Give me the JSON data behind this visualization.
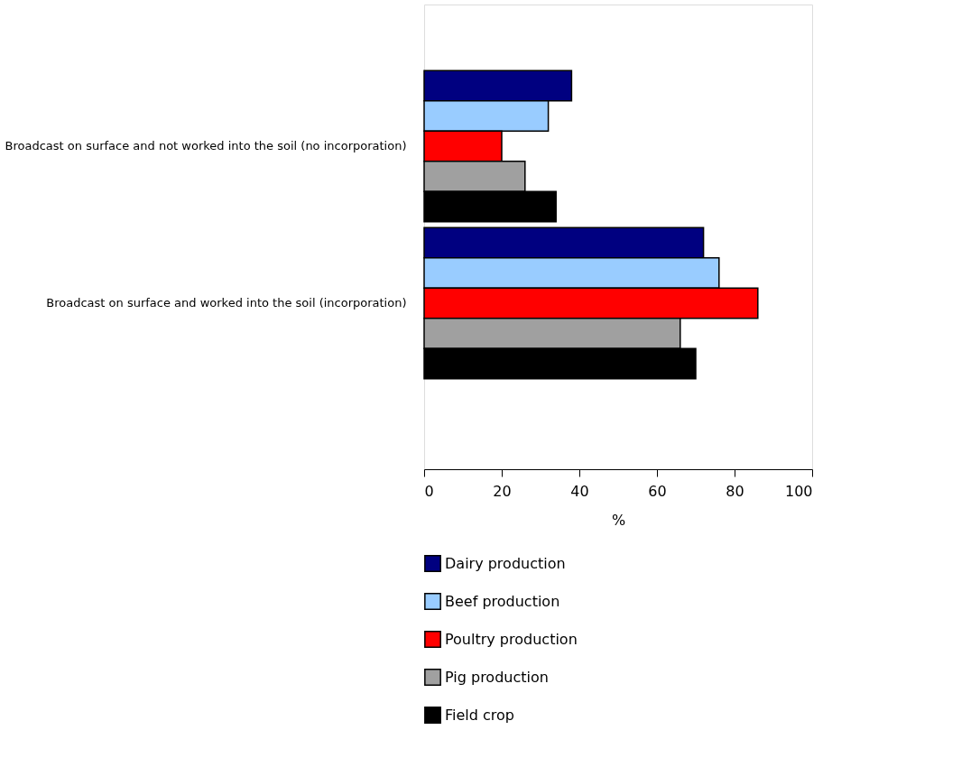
{
  "chart_data": {
    "type": "bar",
    "orientation": "horizontal",
    "xlabel": "%",
    "categories": [
      "Broadcast on surface and not worked into the soil (no incorporation)",
      "Broadcast on surface and worked into the soil (incorporation)"
    ],
    "series": [
      {
        "name": "Dairy production",
        "color": "#000080",
        "values": [
          38,
          72
        ]
      },
      {
        "name": "Beef production",
        "color": "#99ccff",
        "values": [
          32,
          76
        ]
      },
      {
        "name": "Poultry production",
        "color": "#ff0000",
        "values": [
          20,
          86
        ]
      },
      {
        "name": "Pig production",
        "color": "#a0a0a0",
        "values": [
          26,
          66
        ]
      },
      {
        "name": "Field crop",
        "color": "#000000",
        "values": [
          34,
          70
        ]
      }
    ],
    "xlim": [
      0,
      100
    ],
    "xticks": [
      0,
      20,
      40,
      60,
      80,
      100
    ],
    "grid": false,
    "legend": "bottom left"
  }
}
